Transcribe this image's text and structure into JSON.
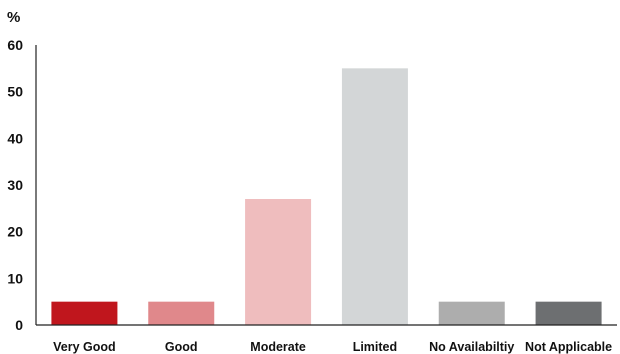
{
  "chart_data": {
    "type": "bar",
    "ylabel": "%",
    "xlabel": "",
    "title": "",
    "ylim": [
      0,
      60
    ],
    "yticks": [
      0,
      10,
      20,
      30,
      40,
      50,
      60
    ],
    "grid": false,
    "categories": [
      "Very Good",
      "Good",
      "Moderate",
      "Limited",
      "No Availabiltiy",
      "Not Applicable"
    ],
    "values": [
      5,
      5,
      27,
      55,
      5,
      5
    ],
    "colors": [
      "#c0161d",
      "#e0888b",
      "#efbdbe",
      "#d3d6d7",
      "#adadad",
      "#6d6f71"
    ]
  }
}
